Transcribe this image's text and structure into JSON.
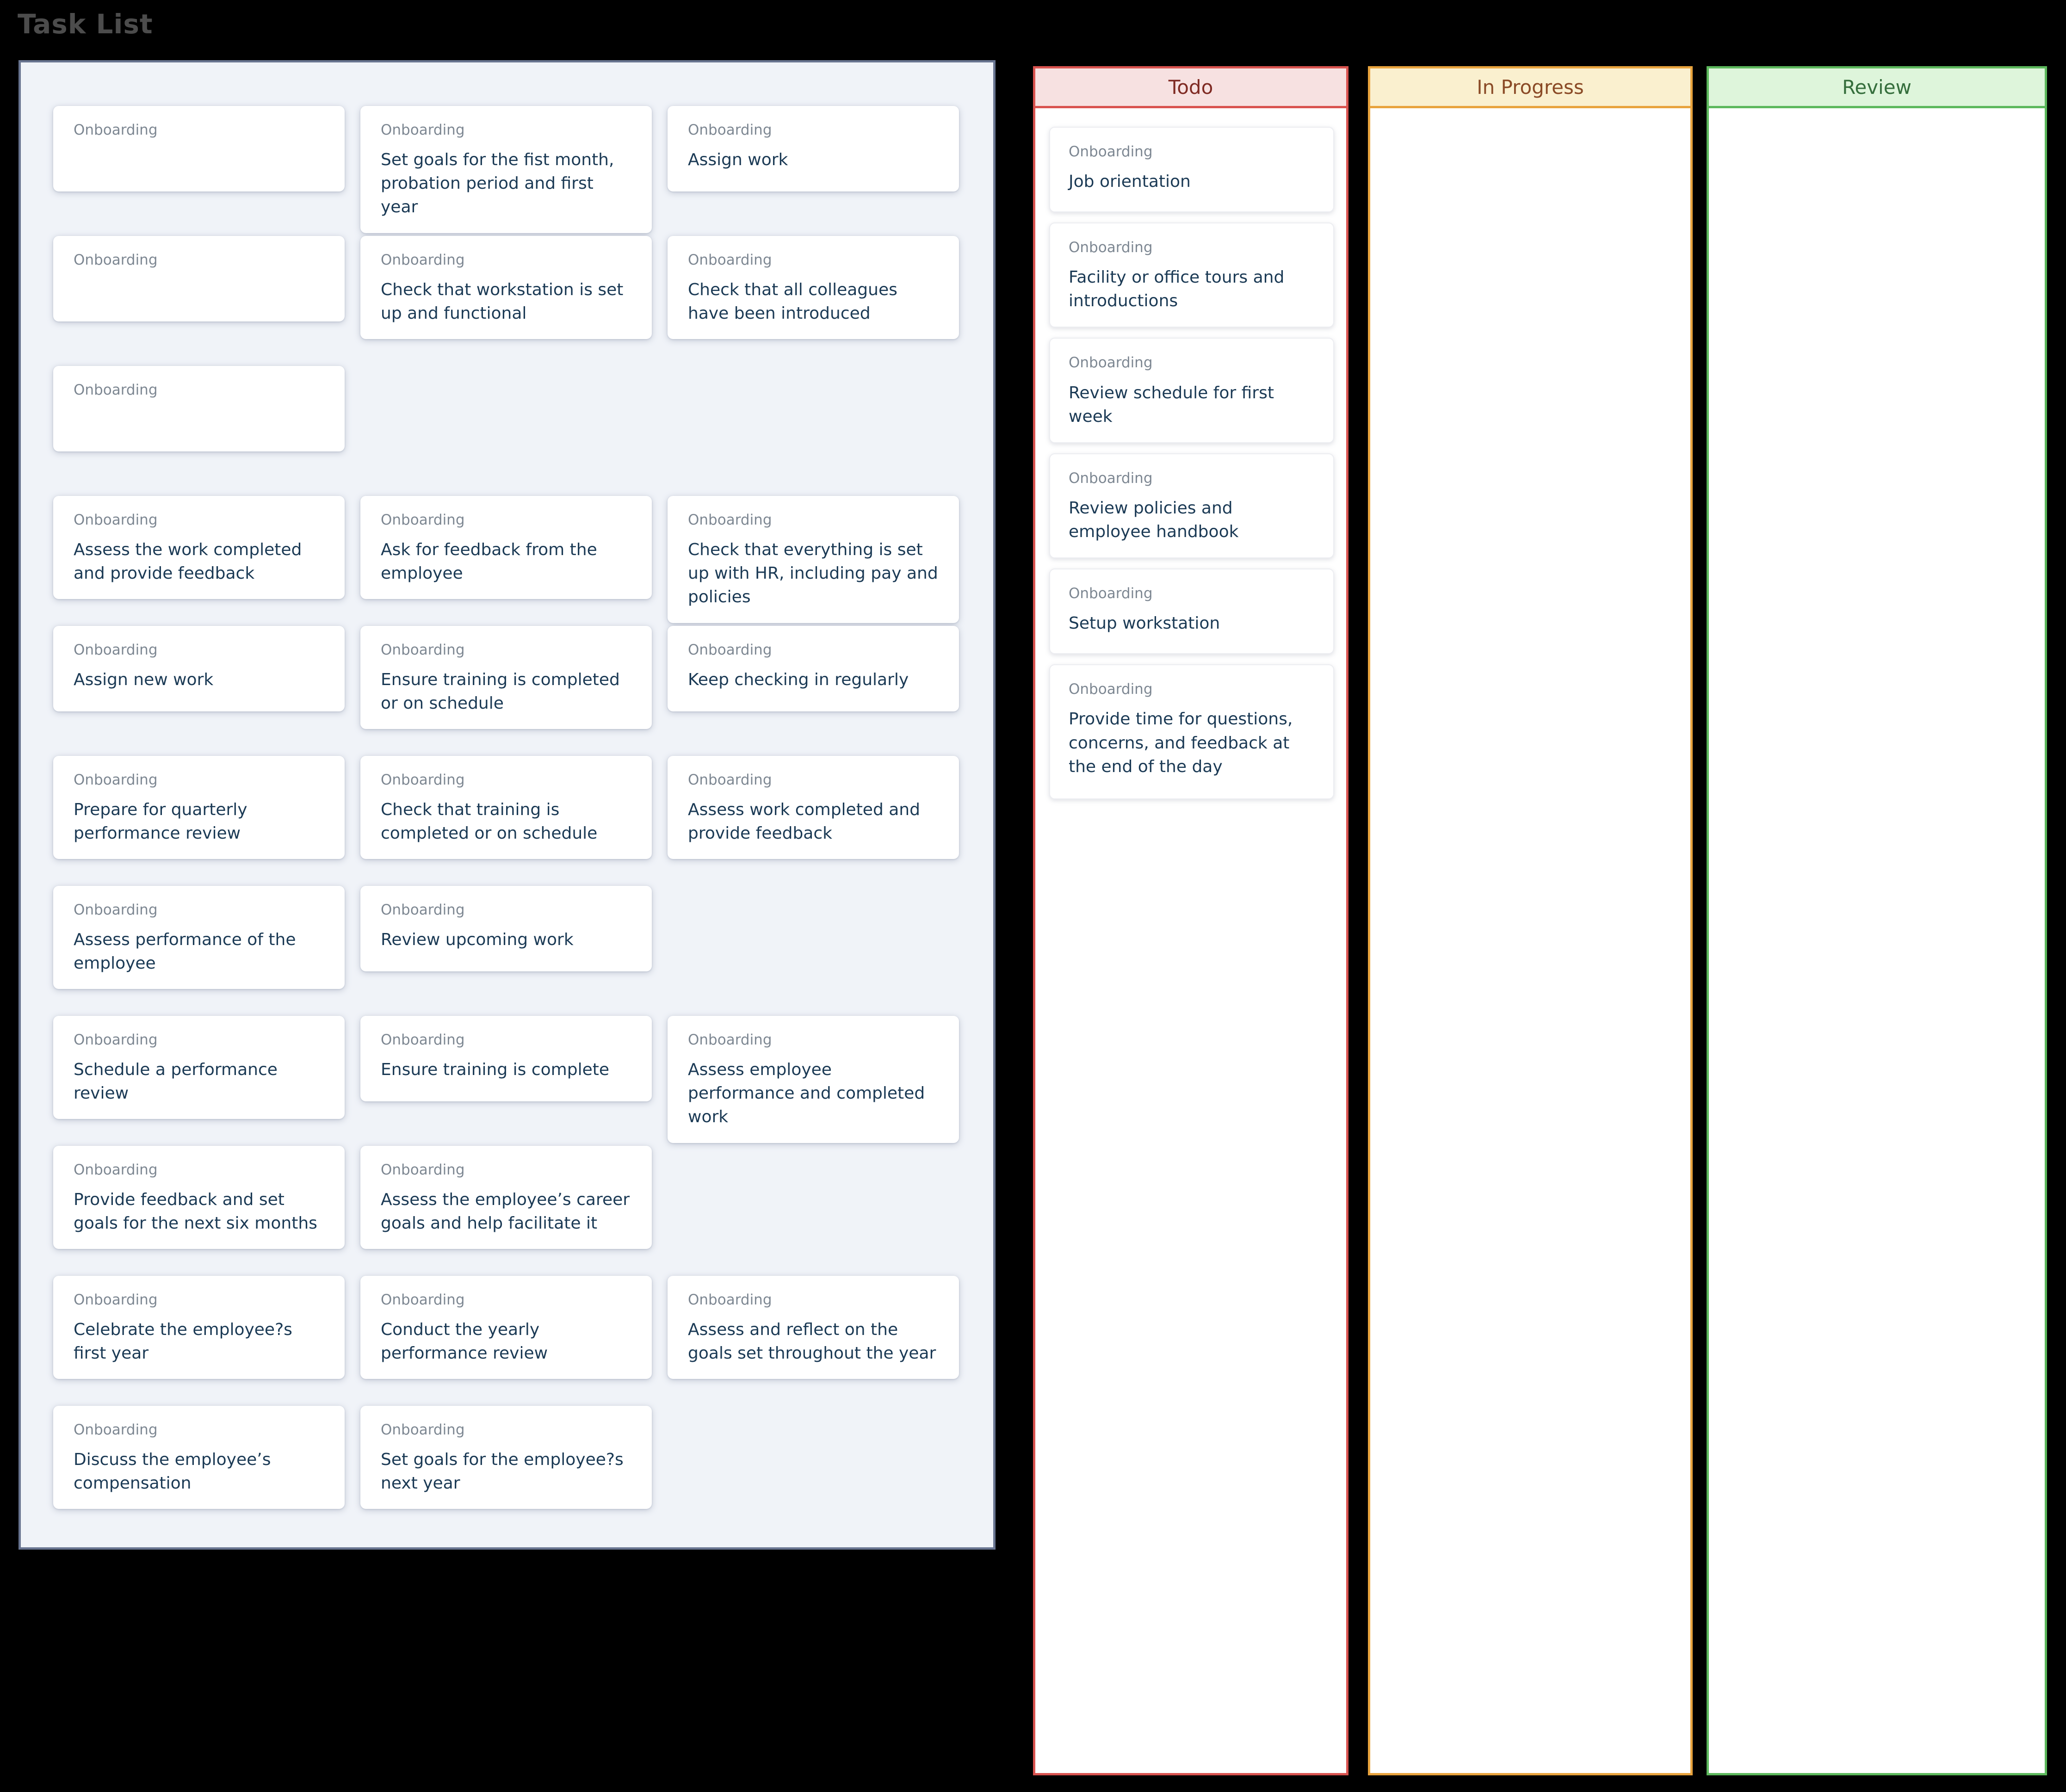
{
  "title": "Task List",
  "colors": {
    "todo_accent": "#d9534f",
    "todo_header_bg": "#f7e1e1",
    "todo_text": "#7f2a23",
    "in_progress_accent": "#e8a33d",
    "in_progress_header_bg": "#faf0cf",
    "in_progress_text": "#8a4a26",
    "review_accent": "#5cb85c",
    "review_header_bg": "#def5db",
    "review_text": "#356e3c",
    "panel_bg": "#f0f3f8",
    "panel_border": "#687490",
    "card_label_color": "#7d8792",
    "card_text_color": "#1b3a55"
  },
  "panel": {
    "cards": [
      {
        "col": 1,
        "row": 1,
        "label": "Onboarding",
        "text": ""
      },
      {
        "col": 2,
        "row": 1,
        "label": "Onboarding",
        "text": "Set goals for the fist month, probation period and first year"
      },
      {
        "col": 3,
        "row": 1,
        "label": "Onboarding",
        "text": "Assign work"
      },
      {
        "col": 1,
        "row": 2,
        "label": "Onboarding",
        "text": ""
      },
      {
        "col": 2,
        "row": 2,
        "label": "Onboarding",
        "text": "Check that workstation is set up and functional"
      },
      {
        "col": 3,
        "row": 2,
        "label": "Onboarding",
        "text": "Check that all colleagues have been introduced"
      },
      {
        "col": 1,
        "row": 3,
        "label": "Onboarding",
        "text": ""
      },
      {
        "col": 1,
        "row": 4,
        "label": "Onboarding",
        "text": "Assess the work completed and provide feedback"
      },
      {
        "col": 2,
        "row": 4,
        "label": "Onboarding",
        "text": "Ask for feedback from the employee"
      },
      {
        "col": 3,
        "row": 4,
        "label": "Onboarding",
        "text": "Check that everything is set up with HR, including pay and policies"
      },
      {
        "col": 1,
        "row": 5,
        "label": "Onboarding",
        "text": "Assign new work"
      },
      {
        "col": 2,
        "row": 5,
        "label": "Onboarding",
        "text": "Ensure training is completed or on schedule"
      },
      {
        "col": 3,
        "row": 5,
        "label": "Onboarding",
        "text": "Keep checking in regularly"
      },
      {
        "col": 1,
        "row": 6,
        "label": "Onboarding",
        "text": "Prepare for quarterly performance review"
      },
      {
        "col": 2,
        "row": 6,
        "label": "Onboarding",
        "text": "Check that training is completed or on schedule"
      },
      {
        "col": 3,
        "row": 6,
        "label": "Onboarding",
        "text": "Assess work completed and provide feedback"
      },
      {
        "col": 1,
        "row": 7,
        "label": "Onboarding",
        "text": "Assess performance of the employee"
      },
      {
        "col": 2,
        "row": 7,
        "label": "Onboarding",
        "text": "Review upcoming work"
      },
      {
        "col": 1,
        "row": 8,
        "label": "Onboarding",
        "text": "Schedule a performance review"
      },
      {
        "col": 2,
        "row": 8,
        "label": "Onboarding",
        "text": "Ensure training is complete"
      },
      {
        "col": 3,
        "row": 8,
        "label": "Onboarding",
        "text": "Assess employee performance and completed work"
      },
      {
        "col": 1,
        "row": 9,
        "label": "Onboarding",
        "text": "Provide feedback and set goals for the next six months"
      },
      {
        "col": 2,
        "row": 9,
        "label": "Onboarding",
        "text": "Assess the employee’s career goals and help facilitate it"
      },
      {
        "col": 1,
        "row": 10,
        "label": "Onboarding",
        "text": "Celebrate the employee?s first year"
      },
      {
        "col": 2,
        "row": 10,
        "label": "Onboarding",
        "text": "Conduct the yearly performance review"
      },
      {
        "col": 3,
        "row": 10,
        "label": "Onboarding",
        "text": "Assess and reflect on the goals set throughout the year"
      },
      {
        "col": 1,
        "row": 11,
        "label": "Onboarding",
        "text": "Discuss the employee’s compensation"
      },
      {
        "col": 2,
        "row": 11,
        "label": "Onboarding",
        "text": "Set goals for the employee?s next year"
      }
    ]
  },
  "board": {
    "todo": {
      "label": "Todo",
      "cards": [
        {
          "label": "Onboarding",
          "text": "Job orientation",
          "size": ""
        },
        {
          "label": "Onboarding",
          "text": "Facility or office tours and introductions",
          "size": ""
        },
        {
          "label": "Onboarding",
          "text": "Review schedule for first week",
          "size": ""
        },
        {
          "label": "Onboarding",
          "text": "Review policies and employee handbook",
          "size": ""
        },
        {
          "label": "Onboarding",
          "text": "Setup workstation",
          "size": ""
        },
        {
          "label": "Onboarding",
          "text": "Provide time for questions, concerns, and feedback at the end of the day",
          "size": "l"
        }
      ]
    },
    "in_progress": {
      "label": "In Progress",
      "cards": []
    },
    "review": {
      "label": "Review",
      "cards": []
    }
  }
}
